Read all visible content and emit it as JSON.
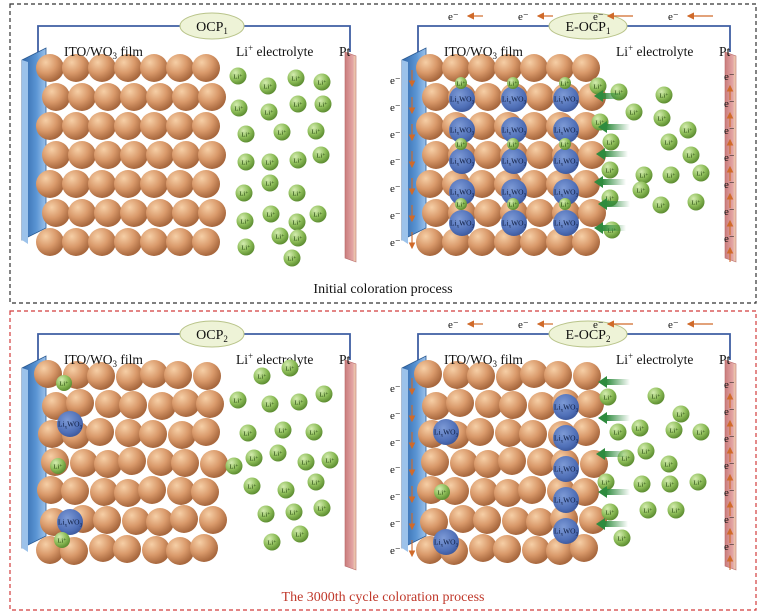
{
  "colors": {
    "top_frame": "#333333",
    "bottom_frame": "#d23c3c",
    "ito_blue": "#4a86c8",
    "wo3_ball": "#d9996a",
    "wo3_ball_dark": "#b97a4d",
    "li_ion": "#8dbd58",
    "lixwo3": "#4f6fb7",
    "pt_electrode": "#d98f8f",
    "wire": "#3f5fa3",
    "arrow_orange": "#d06a2a",
    "green_arrow": "#3f9c4b",
    "caption_red": "#c0392b",
    "badge_fill": "#eef3d7"
  },
  "top": {
    "caption": "Initial coloration process",
    "left_panel": {
      "badge": "OCP",
      "badge_sub": "1",
      "film_label_a": "ITO/WO",
      "film_label_sub": "3",
      "film_label_b": " film",
      "electrolyte_a": "Li",
      "electrolyte_sup": "+",
      "electrolyte_b": " electrolyte",
      "counter": "Pt"
    },
    "right_panel": {
      "badge": "E-OCP",
      "badge_sub": "1",
      "film_label_a": "ITO/WO",
      "film_label_sub": "3",
      "film_label_b": " film",
      "electrolyte_a": "Li",
      "electrolyte_sup": "+",
      "electrolyte_b": " electrolyte",
      "counter": "Pt",
      "electron": "e⁻",
      "colored_species": "LixWO3"
    }
  },
  "bottom": {
    "caption": "The 3000th cycle coloration process",
    "left_panel": {
      "badge": "OCP",
      "badge_sub": "2",
      "film_label_a": "ITO/WO",
      "film_label_sub": "3",
      "film_label_b": " film",
      "electrolyte_a": "Li",
      "electrolyte_sup": "+",
      "electrolyte_b": " electrolyte",
      "counter": "Pt",
      "trapped_species": "LixWO3",
      "trapped_ion": "Li⁺"
    },
    "right_panel": {
      "badge": "E-OCP",
      "badge_sub": "2",
      "film_label_a": "ITO/WO",
      "film_label_sub": "3",
      "film_label_b": " film",
      "electrolyte_a": "Li",
      "electrolyte_sup": "+",
      "electrolyte_b": " electrolyte",
      "counter": "Pt",
      "electron": "e⁻",
      "colored_species": "LixWO3"
    }
  },
  "ion_label": "Li⁺"
}
